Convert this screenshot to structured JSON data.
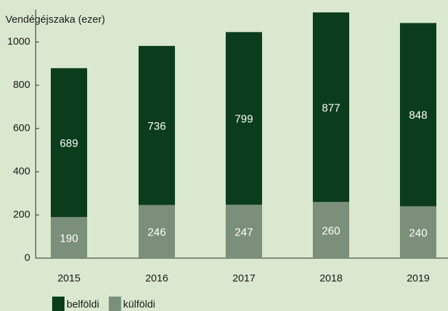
{
  "chart_data": {
    "type": "stacked_bar",
    "y_label": "Vendégéjszaka (ezer)",
    "categories": [
      "2015",
      "2016",
      "2017",
      "2018",
      "2019"
    ],
    "series": [
      {
        "name": "belföldi",
        "color": "#0b3d1c",
        "values": [
          689,
          736,
          799,
          877,
          848
        ]
      },
      {
        "name": "külföldi",
        "color": "#7b8f7a",
        "values": [
          190,
          246,
          247,
          260,
          240
        ]
      }
    ],
    "ylim": [
      0,
      1150
    ],
    "yticks": [
      0,
      200,
      400,
      600,
      800,
      1000
    ],
    "grid": false
  }
}
